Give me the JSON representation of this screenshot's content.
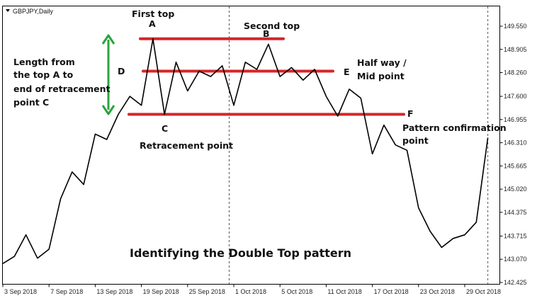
{
  "chart_data": {
    "type": "line",
    "symbol": "GBPJPY,Daily",
    "title": "",
    "xlabel": "",
    "ylabel": "",
    "ylim": [
      142.2,
      150.0
    ],
    "x_ticks": [
      "3 Sep 2018",
      "7 Sep 2018",
      "13 Sep 2018",
      "19 Sep 2018",
      "25 Sep 2018",
      "1 Oct 2018",
      "5 Oct 2018",
      "11 Oct 2018",
      "17 Oct 2018",
      "23 Oct 2018",
      "29 Oct 2018"
    ],
    "y_ticks": [
      "149.550",
      "148.905",
      "148.260",
      "147.600",
      "146.955",
      "146.310",
      "145.665",
      "145.020",
      "144.375",
      "143.715",
      "143.070",
      "142.425"
    ],
    "series": [
      {
        "values": [
          142.95,
          143.15,
          143.75,
          143.1,
          143.35,
          144.75,
          145.5,
          145.15,
          146.55,
          146.4,
          147.1,
          147.6,
          147.35,
          149.2,
          147.1,
          148.55,
          147.75,
          148.3,
          148.15,
          148.45,
          147.35,
          148.55,
          148.35,
          149.05,
          148.15,
          148.4,
          148.05,
          148.35,
          147.6,
          147.05,
          147.8,
          147.55,
          146.0,
          146.8,
          146.25,
          146.1,
          144.5,
          143.85,
          143.4,
          143.65,
          143.75,
          144.1,
          146.45
        ]
      }
    ],
    "levels": [
      {
        "label": "A",
        "value": 149.2
      },
      {
        "label": "D",
        "value": 148.3
      },
      {
        "label": "F",
        "value": 147.1
      }
    ],
    "marker_dates": [
      "1 Oct 2018",
      "31 Oct 2018"
    ],
    "colors": {
      "price": "#000000",
      "level": "#d62528",
      "arrow": "#2aa33d",
      "marker": "#555555"
    },
    "grid": false,
    "legend": "none"
  },
  "annotations": {
    "first_top": "First top",
    "a": "A",
    "second_top": "Second top",
    "b": "B",
    "length_line1": "Length from",
    "length_line2": "the top A to",
    "length_line3": "end of retracement",
    "length_line4": "point C",
    "d": "D",
    "half_way_line1": "Half way /",
    "half_way_line2": "Mid point",
    "e": "E",
    "f": "F",
    "c": "C",
    "retracement": "Retracement point",
    "confirm_line1": "Pattern confirmation",
    "confirm_line2": "point",
    "caption": "Identifying the Double Top pattern"
  }
}
